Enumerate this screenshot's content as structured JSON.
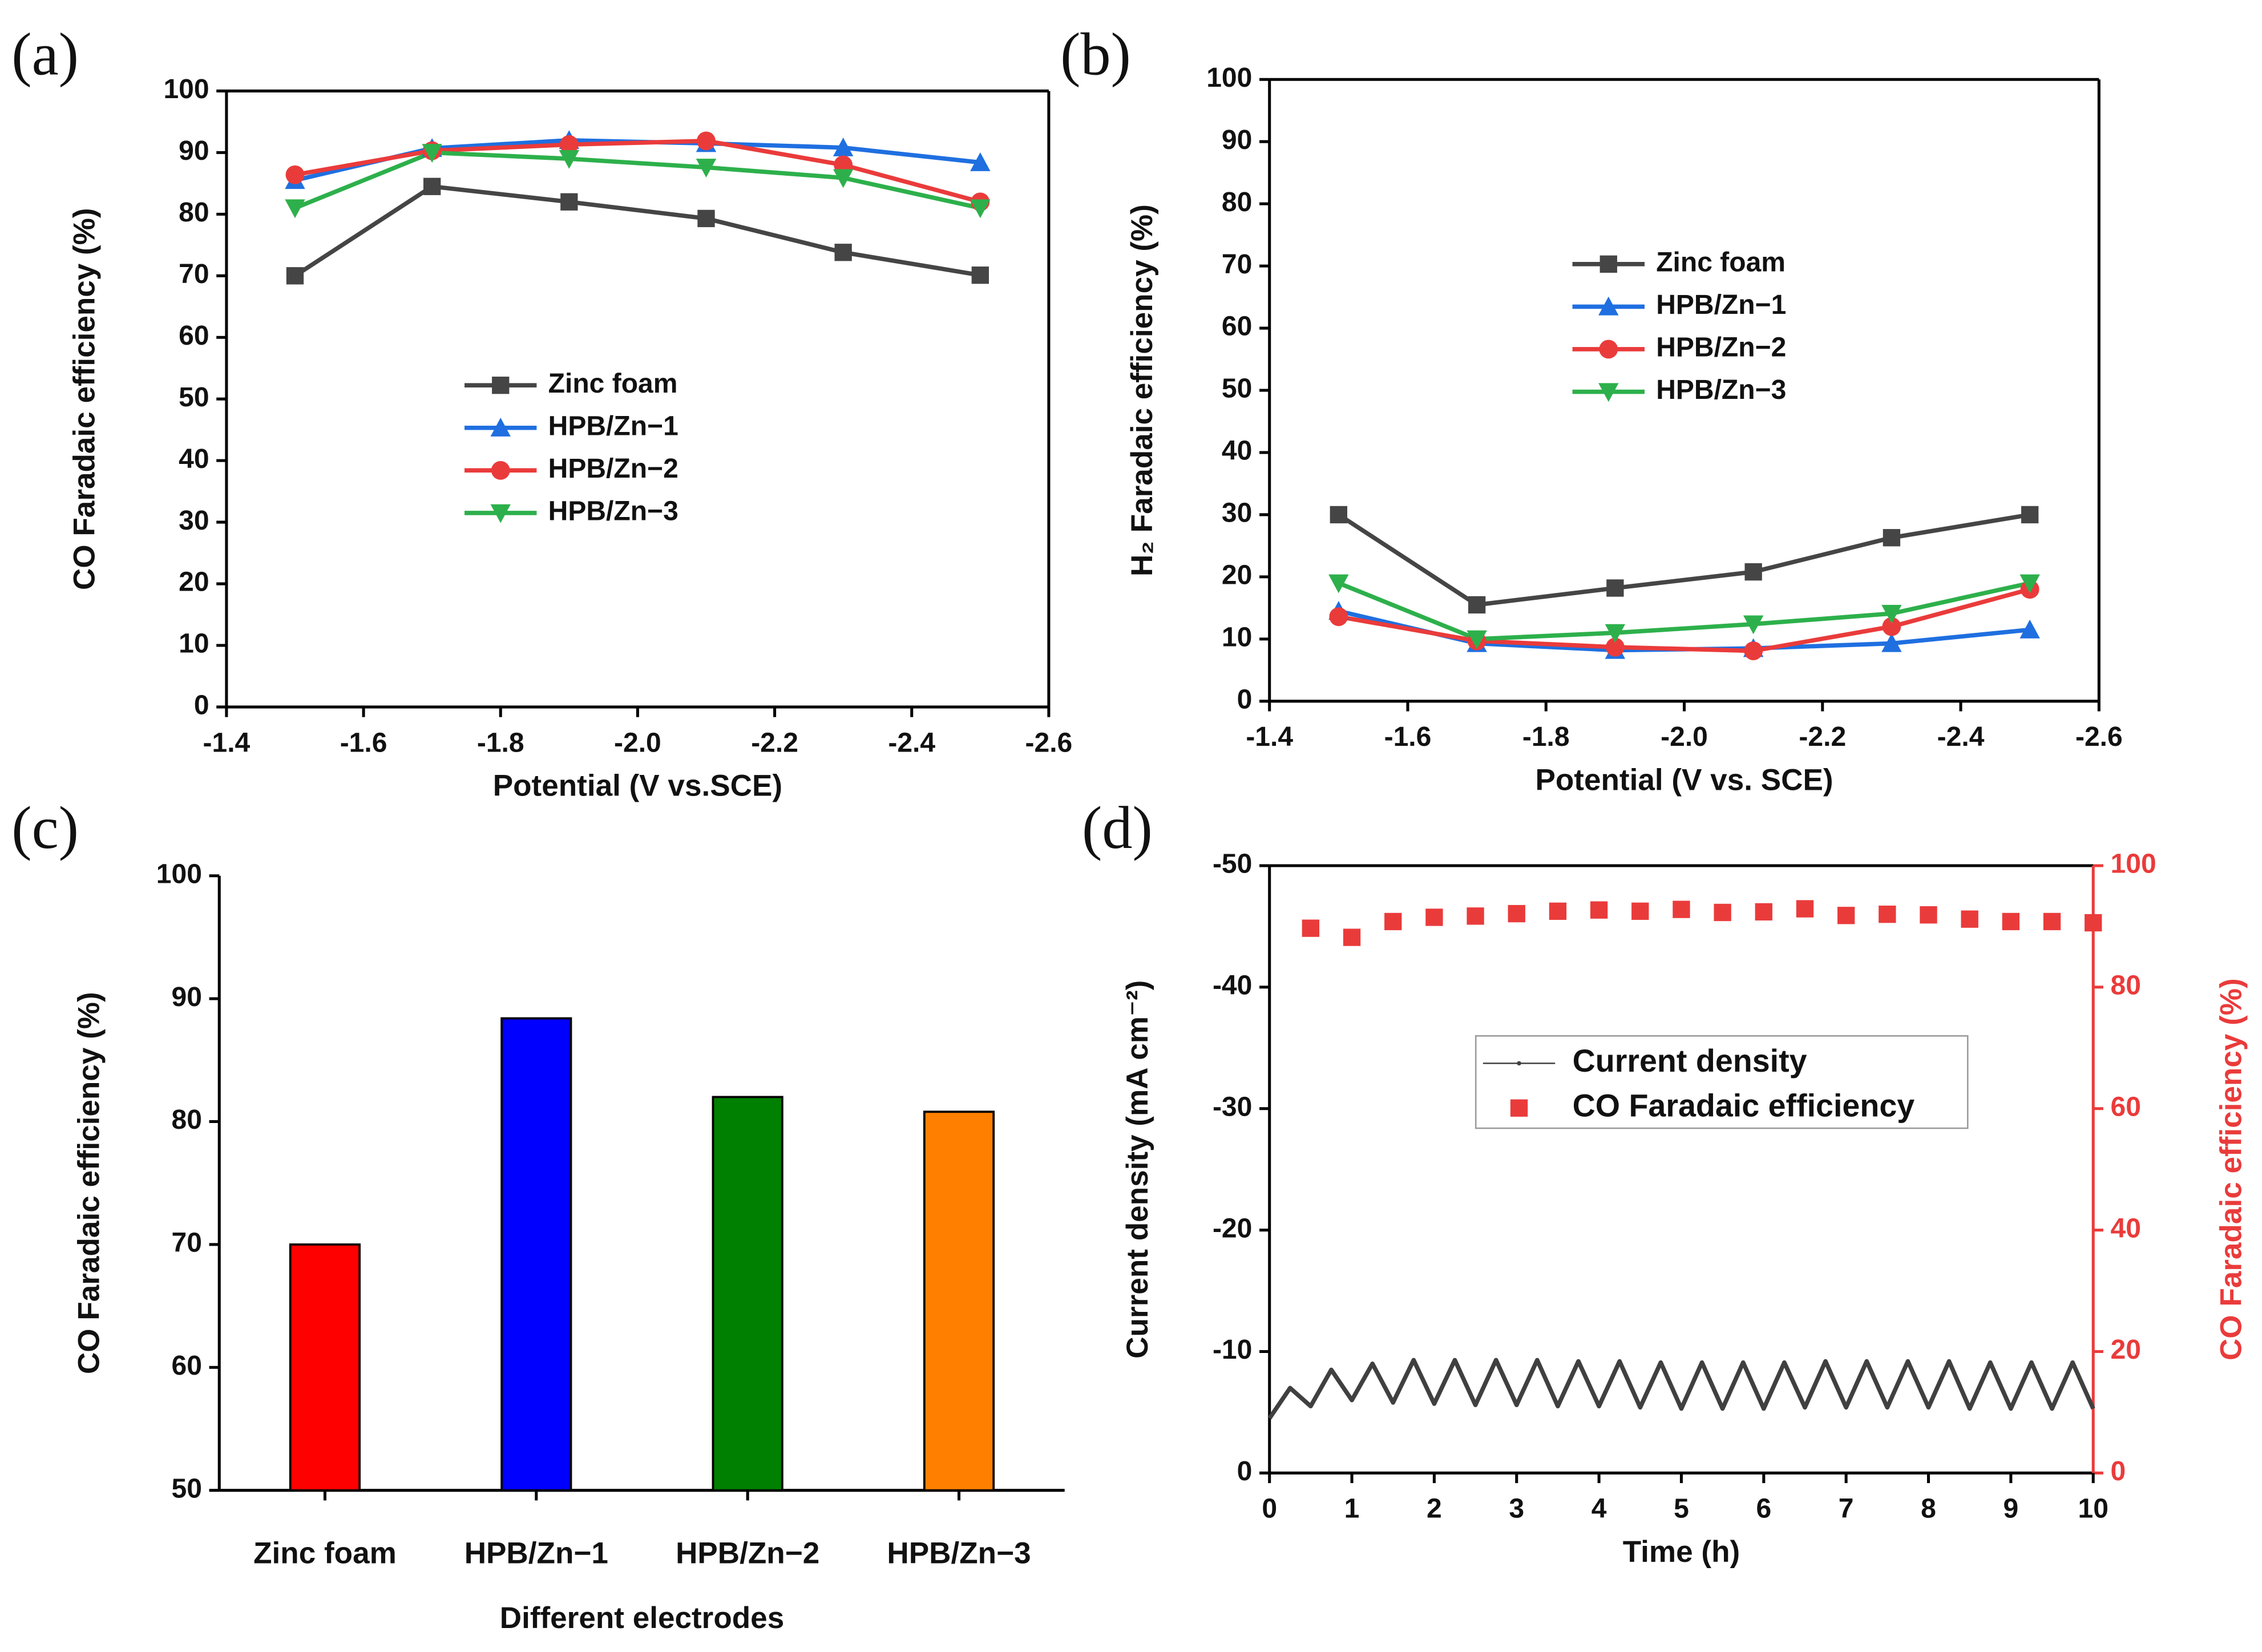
{
  "chart_data": [
    {
      "type": "line",
      "panel_label": "(a)",
      "xlabel": "Potential (V vs.SCE)",
      "ylabel": "CO Faradaic efficiency (%)",
      "x": [
        -1.5,
        -1.7,
        -1.9,
        -2.1,
        -2.3,
        -2.5
      ],
      "xlim": [
        -1.4,
        -2.6
      ],
      "xticks": [
        -1.4,
        -1.6,
        -1.8,
        {
          "value": -2,
          "label": "-2.0"
        },
        -2.2,
        -2.4,
        -2.6
      ],
      "ylim": [
        0,
        100
      ],
      "yticks": [
        0,
        10,
        20,
        30,
        40,
        50,
        60,
        70,
        80,
        90,
        100
      ],
      "series": [
        {
          "name": "Zinc foam",
          "color": "#454545",
          "marker": "square",
          "values": [
            70,
            84.5,
            82,
            79.3,
            73.8,
            70.1
          ]
        },
        {
          "name": "HPB/Zn−1",
          "color": "#1f6fe0",
          "marker": "triangle-up",
          "values": [
            85.5,
            90.7,
            92,
            91.5,
            90.8,
            88.4
          ]
        },
        {
          "name": "HPB/Zn−2",
          "color": "#ea3b3b",
          "marker": "circle",
          "values": [
            86.4,
            90.3,
            91.3,
            91.9,
            88,
            82
          ]
        },
        {
          "name": "HPB/Zn−3",
          "color": "#2db04b",
          "marker": "triangle-down",
          "values": [
            81,
            90,
            89,
            87.6,
            85.9,
            81
          ]
        }
      ]
    },
    {
      "type": "line",
      "panel_label": "(b)",
      "xlabel": "Potential (V vs. SCE)",
      "ylabel": "H₂ Faradaic efficiency (%)",
      "x": [
        -1.5,
        -1.7,
        -1.9,
        -2.1,
        -2.3,
        -2.5
      ],
      "xlim": [
        -1.4,
        -2.6
      ],
      "xticks": [
        -1.4,
        -1.6,
        -1.8,
        {
          "value": -2,
          "label": "-2.0"
        },
        -2.2,
        -2.4,
        -2.6
      ],
      "ylim": [
        0,
        100
      ],
      "yticks": [
        0,
        10,
        20,
        30,
        40,
        50,
        60,
        70,
        80,
        90,
        100
      ],
      "series": [
        {
          "name": "Zinc foam",
          "color": "#454545",
          "marker": "square",
          "values": [
            30,
            15.5,
            18.2,
            20.8,
            26.3,
            30
          ]
        },
        {
          "name": "HPB/Zn−1",
          "color": "#1f6fe0",
          "marker": "triangle-up",
          "values": [
            14.5,
            9.3,
            8.2,
            8.5,
            9.3,
            11.5
          ]
        },
        {
          "name": "HPB/Zn−2",
          "color": "#ea3b3b",
          "marker": "circle",
          "values": [
            13.6,
            9.7,
            8.7,
            8.1,
            12,
            18
          ]
        },
        {
          "name": "HPB/Zn−3",
          "color": "#2db04b",
          "marker": "triangle-down",
          "values": [
            19,
            10,
            11,
            12.4,
            14.1,
            19
          ]
        }
      ]
    },
    {
      "type": "bar",
      "panel_label": "(c)",
      "xlabel": "Different electrodes",
      "ylabel": "CO Faradaic efficiency (%)",
      "categories": [
        "Zinc foam",
        "HPB/Zn−1",
        "HPB/Zn−2",
        "HPB/Zn−3"
      ],
      "values": [
        70,
        88.4,
        82,
        80.8
      ],
      "colors": [
        "#ff0000",
        "#0000ff",
        "#008000",
        "#ff8000"
      ],
      "ylim": [
        50,
        100
      ],
      "yticks": [
        50,
        60,
        70,
        80,
        90,
        100
      ]
    },
    {
      "type": "dual",
      "panel_label": "(d)",
      "xlabel": "Time (h)",
      "ylabel": "Current density (mA cm⁻²)",
      "y2label": "CO Faradaic efficiency (%)",
      "xlim": [
        0,
        10
      ],
      "xticks": [
        0,
        1,
        2,
        3,
        4,
        5,
        6,
        7,
        8,
        9,
        10
      ],
      "ylim": [
        0,
        -50
      ],
      "yticks": [
        0,
        -10,
        -20,
        -30,
        -40,
        -50
      ],
      "y2lim": [
        0,
        100
      ],
      "y2ticks": [
        0,
        20,
        40,
        60,
        80,
        100
      ],
      "y2color": "#ea3b3b",
      "series": [
        {
          "name": "Current density",
          "color": "#404040",
          "marker": "line",
          "x": [
            0,
            0.25,
            0.5,
            0.75,
            1,
            1.25,
            1.5,
            1.75,
            2,
            2.25,
            2.5,
            2.75,
            3,
            3.25,
            3.5,
            3.75,
            4,
            4.25,
            4.5,
            4.75,
            5,
            5.25,
            5.5,
            5.75,
            6,
            6.25,
            6.5,
            6.75,
            7,
            7.25,
            7.5,
            7.75,
            8,
            8.25,
            8.5,
            8.75,
            9,
            9.25,
            9.5,
            9.75,
            10
          ],
          "values": [
            -4.5,
            -7,
            -5.5,
            -8.5,
            -6,
            -9,
            -5.8,
            -9.3,
            -5.7,
            -9.3,
            -5.6,
            -9.3,
            -5.6,
            -9.3,
            -5.5,
            -9.2,
            -5.5,
            -9.2,
            -5.4,
            -9.1,
            -5.3,
            -9.1,
            -5.3,
            -9.1,
            -5.3,
            -9.1,
            -5.4,
            -9.2,
            -5.4,
            -9.2,
            -5.4,
            -9.2,
            -5.4,
            -9.2,
            -5.3,
            -9.1,
            -5.3,
            -9.1,
            -5.3,
            -9.1,
            -5.3
          ]
        },
        {
          "name": "CO Faradaic efficiency",
          "color": "#ea3b3b",
          "marker": "square",
          "axis": "y2",
          "x": [
            0.5,
            1,
            1.5,
            2,
            2.5,
            3,
            3.5,
            4,
            4.5,
            5,
            5.5,
            6,
            6.5,
            7,
            7.5,
            8,
            8.5,
            9,
            9.5,
            10
          ],
          "values": [
            89.7,
            88.2,
            90.8,
            91.5,
            91.7,
            92.1,
            92.5,
            92.7,
            92.5,
            92.8,
            92.3,
            92.4,
            92.9,
            91.8,
            92,
            91.9,
            91.2,
            90.8,
            90.8,
            90.6
          ]
        }
      ]
    }
  ]
}
